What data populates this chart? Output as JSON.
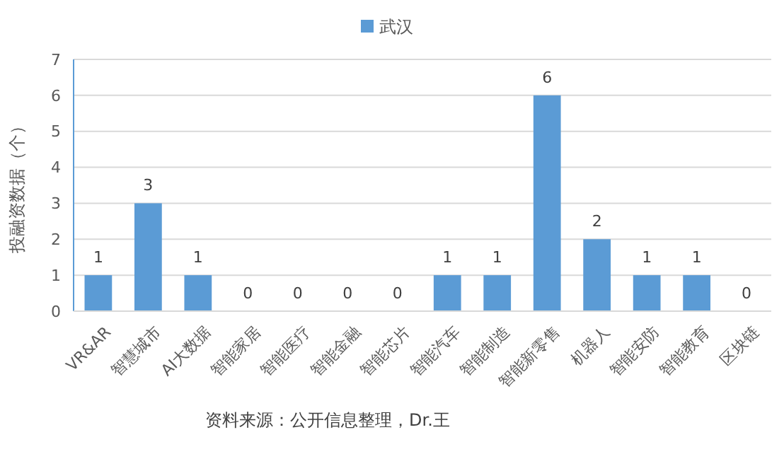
{
  "chart_data": {
    "type": "bar",
    "ylabel": "投融资数据（个）",
    "categories": [
      "VR&AR",
      "智慧城市",
      "AI大数据",
      "智能家居",
      "智能医疗",
      "智能金融",
      "智能芯片",
      "智能汽车",
      "智能制造",
      "智能新零售",
      "机器人",
      "智能安防",
      "智能教育",
      "区块链"
    ],
    "series": [
      {
        "name": "武汉",
        "color": "#5b9bd5",
        "values": [
          1,
          3,
          1,
          0,
          0,
          0,
          0,
          1,
          1,
          6,
          2,
          1,
          1,
          0
        ]
      }
    ],
    "ylim": [
      0,
      7
    ],
    "yticks": [
      0,
      1,
      2,
      3,
      4,
      5,
      6,
      7
    ],
    "grid": "y",
    "legend": "top",
    "data_labels": true,
    "annotations": [
      "资料来源：公开信息整理，Dr.王"
    ]
  }
}
